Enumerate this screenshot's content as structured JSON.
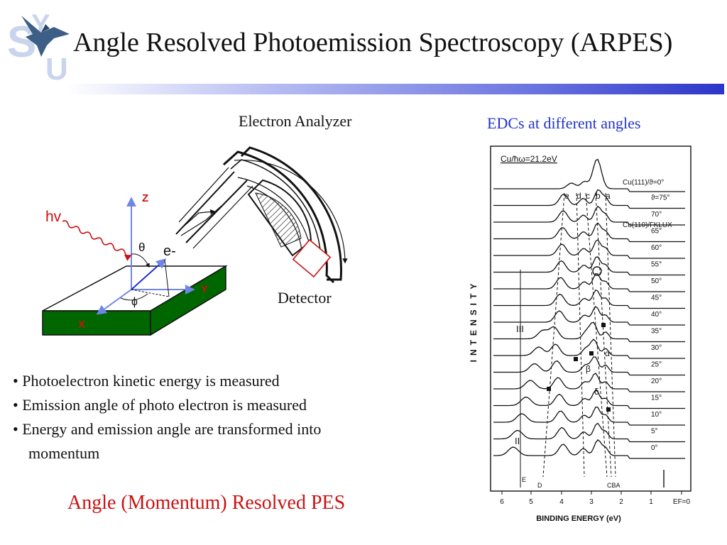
{
  "title": "Angle Resolved Photoemission Spectroscopy (ARPES)",
  "logo": {
    "icon": "eagle-icon",
    "letters": "YSU"
  },
  "diagram": {
    "analyzer_label": "Electron Analyzer",
    "detector_label": "Detector",
    "photon_label": "hv",
    "electron_label": "e-",
    "axis_z": "Z",
    "axis_y": "Y",
    "axis_x": "X",
    "theta": "θ",
    "phi": "ϕ"
  },
  "edc_heading": "EDCs at different angles",
  "bullets": [
    "• Photoelectron kinetic energy is measured",
    "• Emission angle of photo electron is measured",
    "• Energy and emission angle are transformed into",
    "momentum"
  ],
  "footer": "Angle (Momentum) Resolved PES",
  "edc_plot": {
    "source_label": "Cu/ħω=21.2eV",
    "ylabel": "INTENSITY",
    "xlabel": "BINDING ENERGY (eV)",
    "x_ticks": [
      "6",
      "5",
      "4",
      "3",
      "2",
      "1",
      "EF=0"
    ],
    "top_curve_label": "Cu(111)/ϑ=0°",
    "second_label": "Cu(110)/ΓKLUX",
    "angle_labels": [
      "ϑ=75°",
      "70°",
      "65°",
      "60°",
      "55°",
      "50°",
      "45°",
      "40°",
      "35°",
      "30°",
      "25°",
      "20°",
      "15°",
      "10°",
      "5°",
      "0°"
    ],
    "peak_letters": [
      "e",
      "d",
      "c",
      "b",
      "a"
    ],
    "roman_labels": [
      "III",
      "II"
    ],
    "bottom_letters": [
      "E",
      "D",
      "CBA"
    ],
    "greek_labels": [
      "β",
      "α",
      "δ"
    ],
    "colors": {
      "substrate": "#006600",
      "axes": "#6f86e8",
      "photon": "#cc1111",
      "text_red": "#cc1111"
    }
  }
}
